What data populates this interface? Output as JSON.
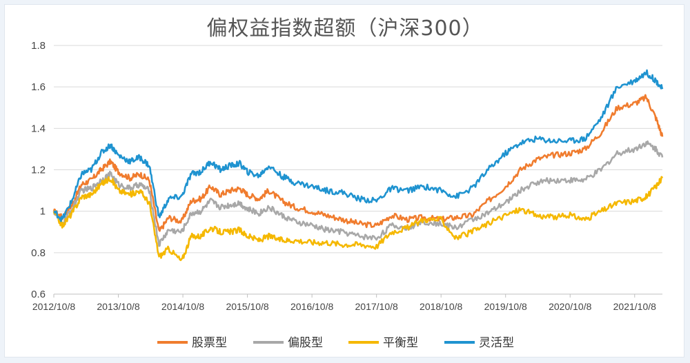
{
  "chart_data": {
    "type": "line",
    "title": "偏权益指数超额（沪深300）",
    "xlabel": "",
    "ylabel": "",
    "ylim": [
      0.6,
      1.8
    ],
    "yticks": [
      "0.6",
      "0.8",
      "1",
      "1.2",
      "1.4",
      "1.6",
      "1.8"
    ],
    "xticks": [
      "2012/10/8",
      "2013/10/8",
      "2014/10/8",
      "2015/10/8",
      "2016/10/8",
      "2017/10/8",
      "2018/10/8",
      "2019/10/8",
      "2020/10/8",
      "2021/10/8"
    ],
    "grid": "horizontal",
    "legend": "bottom",
    "x": [
      2012.77,
      2012.9,
      2013.05,
      2013.2,
      2013.35,
      2013.5,
      2013.65,
      2013.77,
      2013.95,
      2014.1,
      2014.25,
      2014.4,
      2014.55,
      2014.75,
      2014.9,
      2015.05,
      2015.2,
      2015.35,
      2015.5,
      2015.65,
      2015.77,
      2015.95,
      2016.1,
      2016.3,
      2016.5,
      2016.77,
      2017.0,
      2017.25,
      2017.5,
      2017.77,
      2018.0,
      2018.25,
      2018.5,
      2018.77,
      2019.0,
      2019.25,
      2019.5,
      2019.77,
      2020.0,
      2020.25,
      2020.5,
      2020.77,
      2021.0,
      2021.25,
      2021.5,
      2021.77,
      2021.95,
      2022.1,
      2022.2
    ],
    "series": [
      {
        "name": "股票型",
        "color": "#f07c2e",
        "values": [
          1.0,
          0.97,
          1.03,
          1.13,
          1.15,
          1.2,
          1.24,
          1.19,
          1.16,
          1.18,
          1.15,
          0.9,
          0.97,
          0.95,
          1.05,
          1.06,
          1.12,
          1.08,
          1.1,
          1.11,
          1.08,
          1.06,
          1.1,
          1.05,
          1.02,
          1.0,
          0.98,
          0.96,
          0.94,
          0.93,
          0.98,
          0.96,
          0.97,
          0.96,
          0.97,
          0.98,
          1.05,
          1.12,
          1.2,
          1.25,
          1.27,
          1.28,
          1.3,
          1.38,
          1.5,
          1.52,
          1.55,
          1.45,
          1.36
        ]
      },
      {
        "name": "偏股型",
        "color": "#a8a8a8",
        "values": [
          1.0,
          0.94,
          1.01,
          1.1,
          1.11,
          1.15,
          1.18,
          1.13,
          1.11,
          1.13,
          1.1,
          0.84,
          0.91,
          0.9,
          0.99,
          1.0,
          1.05,
          1.02,
          1.03,
          1.04,
          1.01,
          0.99,
          1.02,
          0.98,
          0.95,
          0.93,
          0.91,
          0.9,
          0.88,
          0.87,
          0.93,
          0.92,
          0.95,
          0.94,
          0.92,
          0.96,
          0.99,
          1.04,
          1.1,
          1.14,
          1.15,
          1.15,
          1.15,
          1.2,
          1.28,
          1.3,
          1.33,
          1.3,
          1.26
        ]
      },
      {
        "name": "平衡型",
        "color": "#f5b800",
        "values": [
          1.0,
          0.93,
          0.99,
          1.07,
          1.08,
          1.13,
          1.16,
          1.1,
          1.08,
          1.1,
          1.04,
          0.78,
          0.82,
          0.76,
          0.88,
          0.88,
          0.92,
          0.9,
          0.9,
          0.91,
          0.88,
          0.86,
          0.88,
          0.86,
          0.86,
          0.85,
          0.85,
          0.84,
          0.84,
          0.83,
          0.9,
          0.92,
          0.96,
          0.96,
          0.87,
          0.9,
          0.94,
          0.98,
          1.01,
          0.98,
          0.97,
          0.98,
          0.96,
          1.0,
          1.04,
          1.05,
          1.07,
          1.12,
          1.16
        ]
      },
      {
        "name": "灵活型",
        "color": "#1f93d0",
        "values": [
          1.0,
          0.96,
          1.05,
          1.18,
          1.2,
          1.28,
          1.32,
          1.27,
          1.24,
          1.26,
          1.22,
          0.97,
          1.06,
          1.07,
          1.18,
          1.19,
          1.24,
          1.2,
          1.22,
          1.23,
          1.19,
          1.17,
          1.22,
          1.17,
          1.14,
          1.12,
          1.1,
          1.09,
          1.06,
          1.05,
          1.11,
          1.1,
          1.12,
          1.1,
          1.07,
          1.11,
          1.2,
          1.28,
          1.33,
          1.35,
          1.34,
          1.34,
          1.35,
          1.45,
          1.6,
          1.63,
          1.67,
          1.63,
          1.59
        ]
      }
    ]
  }
}
